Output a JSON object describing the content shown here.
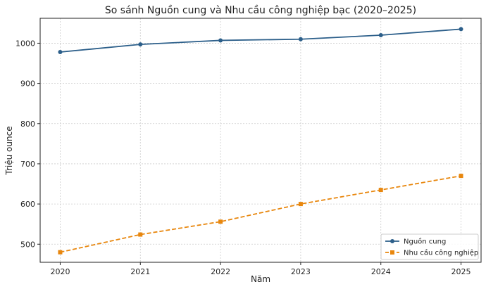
{
  "chart_data": {
    "type": "line",
    "title": "So sánh Nguồn cung và Nhu cầu công nghiệp bạc (2020–2025)",
    "xlabel": "Năm",
    "ylabel": "Triệu ounce",
    "x": [
      2020,
      2021,
      2022,
      2023,
      2024,
      2025
    ],
    "xlim": [
      2019.75,
      2025.25
    ],
    "ylim": [
      455,
      1062
    ],
    "yticks": [
      500,
      600,
      700,
      800,
      900,
      1000
    ],
    "grid": true,
    "legend_position": "lower-right",
    "series": [
      {
        "name": "Nguồn cung",
        "values": [
          978,
          997,
          1007,
          1010,
          1020,
          1035
        ],
        "color": "#2c5f8a",
        "marker": "circle",
        "line_style": "solid"
      },
      {
        "name": "Nhu cầu công nghiệp",
        "values": [
          480,
          524,
          556,
          600,
          635,
          670
        ],
        "color": "#e8870e",
        "marker": "square",
        "line_style": "dashed"
      }
    ]
  }
}
